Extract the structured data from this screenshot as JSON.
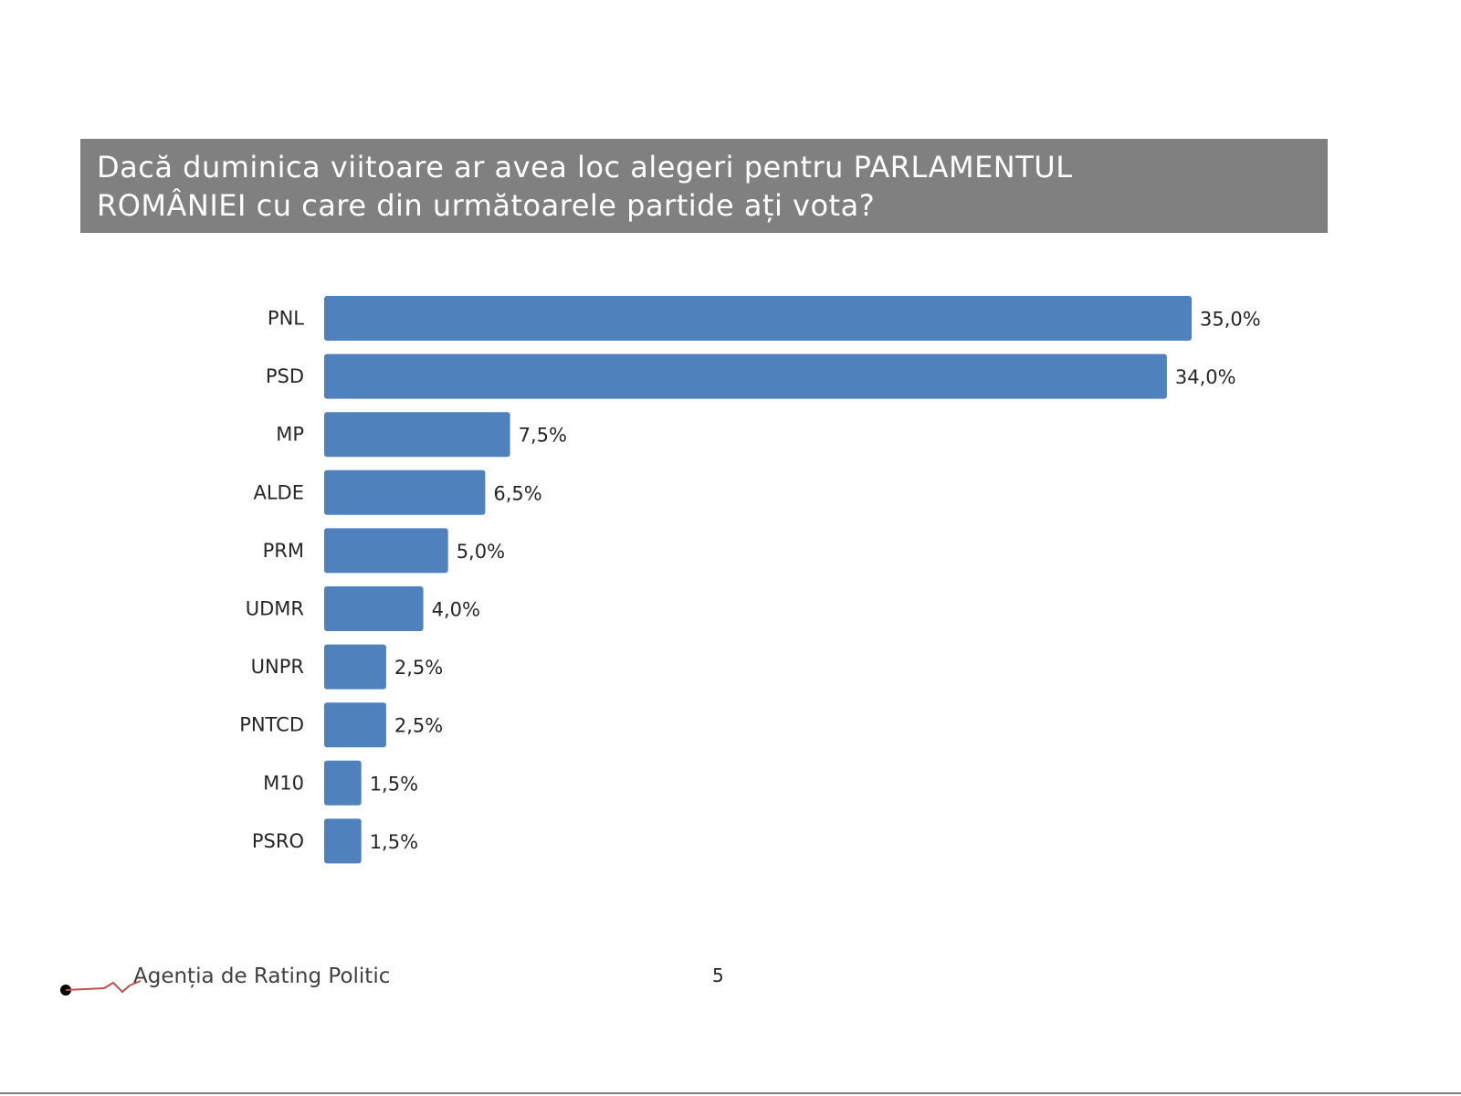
{
  "chart_data": {
    "type": "bar",
    "orientation": "horizontal",
    "title": "Dacă duminica viitoare ar avea loc alegeri pentru PARLAMENTUL ROMÂNIEI cu care din următoarele partide ați vota?",
    "title_lines": [
      "Dacă duminica viitoare ar avea loc alegeri pentru PARLAMENTUL",
      "ROMÂNIEI cu care din următoarele partide ați vota?"
    ],
    "categories": [
      "PNL",
      "PSD",
      "MP",
      "ALDE",
      "PRM",
      "UDMR",
      "UNPR",
      "PNTCD",
      "M10",
      "PSRO"
    ],
    "values": [
      35.0,
      34.0,
      7.5,
      6.5,
      5.0,
      4.0,
      2.5,
      2.5,
      1.5,
      1.5
    ],
    "value_labels": [
      "35,0%",
      "34,0%",
      "7,5%",
      "6,5%",
      "5,0%",
      "4,0%",
      "2,5%",
      "2,5%",
      "1,5%",
      "1,5%"
    ],
    "xlabel": "",
    "ylabel": "",
    "xlim": [
      0,
      35
    ],
    "grid": false,
    "legend": "none",
    "bar_color": "#4F81BD"
  },
  "header": {
    "band_color": "#808080"
  },
  "footer": {
    "logo_text": "Agenția de Rating Politic",
    "logo_accent_color": "#C0504D",
    "page_number": "5"
  }
}
